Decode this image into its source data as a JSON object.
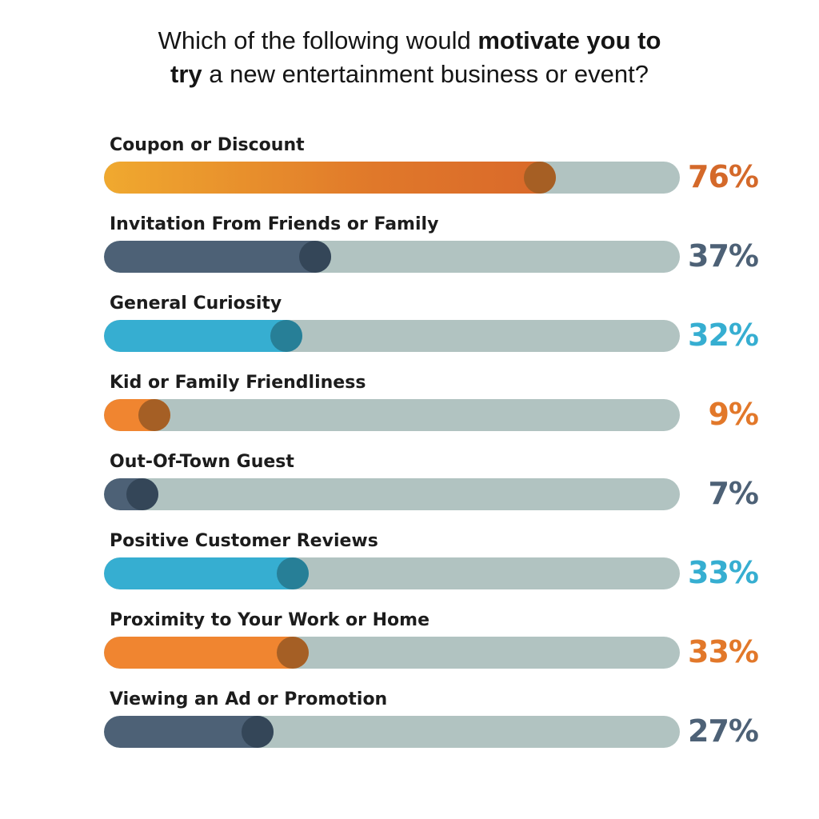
{
  "title": {
    "line1_pre": "Which of the following would ",
    "line1_bold": "motivate you to",
    "line2_bold": "try",
    "line2_post": " a new entertainment business or event?"
  },
  "chart_data": {
    "type": "bar",
    "orientation": "horizontal",
    "xlim": [
      0,
      100
    ],
    "unit": "%",
    "categories": [
      "Coupon or Discount",
      "Invitation From Friends or Family",
      "General Curiosity",
      "Kid or Family Friendliness",
      "Out-Of-Town Guest",
      "Positive Customer Reviews",
      "Proximity to Your Work or Home",
      "Viewing an Ad or Promotion"
    ],
    "values": [
      76,
      37,
      32,
      9,
      7,
      33,
      33,
      27
    ],
    "value_labels": [
      "76%",
      "37%",
      "32%",
      "9%",
      "7%",
      "33%",
      "33%",
      "27%"
    ],
    "styles": [
      {
        "fill": "linear-gradient(90deg, #f0a92f 0%, #e0782a 60%, #d9682a 100%)",
        "knob": "#a65f24",
        "text": "#d4692a"
      },
      {
        "fill": "#4d6176",
        "knob": "#344658",
        "text": "#4d6176"
      },
      {
        "fill": "#36aed1",
        "knob": "#277f97",
        "text": "#36aed1"
      },
      {
        "fill": "#f08530",
        "knob": "#a55f25",
        "text": "#e2782a"
      },
      {
        "fill": "#4d6176",
        "knob": "#344658",
        "text": "#4d6176"
      },
      {
        "fill": "#36aed1",
        "knob": "#277f97",
        "text": "#36aed1"
      },
      {
        "fill": "#f08530",
        "knob": "#a55f25",
        "text": "#e2782a"
      },
      {
        "fill": "#4d6176",
        "knob": "#344658",
        "text": "#4d6176"
      }
    ],
    "grid": false,
    "legend": "none"
  }
}
